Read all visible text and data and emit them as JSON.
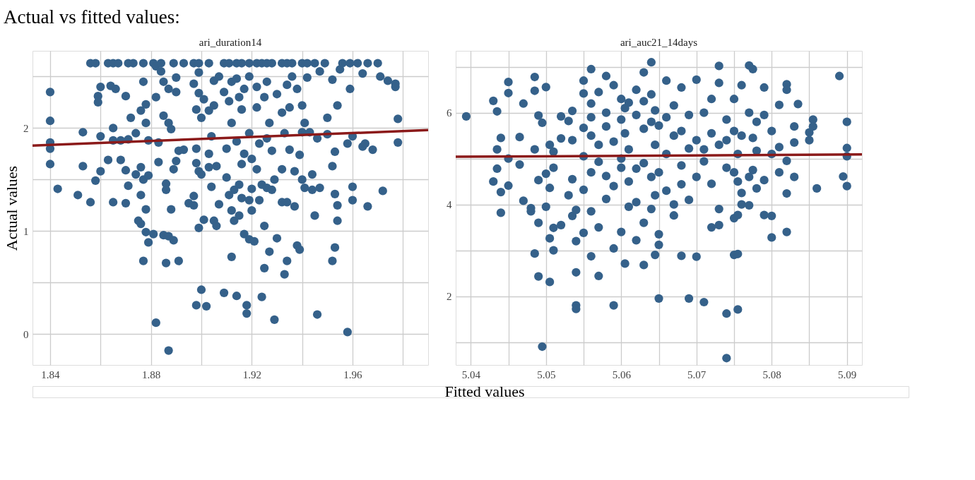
{
  "chart_data": [
    {
      "type": "scatter",
      "title": "ari_duration14",
      "annotations": [
        "Actual vs fitted values:"
      ],
      "xlabel": "Fitted values",
      "ylabel": "Actual values",
      "grid": true,
      "xlim": [
        1.833,
        1.99
      ],
      "ylim": [
        -0.3,
        2.75
      ],
      "xticks": [
        1.84,
        {
          "value": 1.86,
          "label": null
        },
        1.88,
        {
          "value": 1.9,
          "label": null
        },
        1.92,
        {
          "value": 1.94,
          "label": null
        },
        1.96,
        {
          "value": 1.98,
          "label": null
        }
      ],
      "yticks": [
        0,
        {
          "value": 0.5,
          "label": null
        },
        1,
        {
          "value": 1.5,
          "label": null
        },
        2,
        {
          "value": 2.5,
          "label": null
        }
      ],
      "series": [
        {
          "color": "#35618a",
          "marker": "circle",
          "x": [
            1.84,
            1.84,
            1.84,
            1.84,
            1.84,
            1.843,
            1.851,
            1.853,
            1.853,
            1.856,
            1.856,
            1.858,
            1.858,
            1.859,
            1.859,
            1.86,
            1.86,
            1.86,
            1.863,
            1.863,
            1.864,
            1.865,
            1.865,
            1.865,
            1.865,
            1.866,
            1.867,
            1.868,
            1.868,
            1.87,
            1.87,
            1.87,
            1.871,
            1.871,
            1.871,
            1.872,
            1.873,
            1.874,
            1.874,
            1.875,
            1.876,
            1.876,
            1.876,
            1.876,
            1.877,
            1.877,
            1.877,
            1.877,
            1.878,
            1.878,
            1.878,
            1.878,
            1.879,
            1.879,
            1.879,
            1.881,
            1.881,
            1.882,
            1.882,
            1.882,
            1.883,
            1.883,
            1.884,
            1.884,
            1.885,
            1.885,
            1.885,
            1.886,
            1.886,
            1.886,
            1.887,
            1.887,
            1.887,
            1.887,
            1.888,
            1.888,
            1.889,
            1.889,
            1.889,
            1.89,
            1.89,
            1.89,
            1.891,
            1.891,
            1.893,
            1.893,
            1.895,
            1.897,
            1.897,
            1.897,
            1.897,
            1.898,
            1.898,
            1.898,
            1.898,
            1.899,
            1.899,
            1.899,
            1.899,
            1.899,
            1.9,
            1.9,
            1.9,
            1.901,
            1.901,
            1.902,
            1.903,
            1.903,
            1.903,
            1.903,
            1.904,
            1.904,
            1.905,
            1.905,
            1.905,
            1.906,
            1.906,
            1.907,
            1.907,
            1.909,
            1.909,
            1.909,
            1.91,
            1.91,
            1.911,
            1.911,
            1.911,
            1.912,
            1.912,
            1.912,
            1.912,
            1.913,
            1.913,
            1.914,
            1.914,
            1.914,
            1.914,
            1.915,
            1.915,
            1.915,
            1.916,
            1.916,
            1.916,
            1.916,
            1.917,
            1.917,
            1.917,
            1.918,
            1.918,
            1.919,
            1.919,
            1.919,
            1.919,
            1.919,
            1.92,
            1.92,
            1.92,
            1.921,
            1.922,
            1.922,
            1.922,
            1.922,
            1.923,
            1.923,
            1.924,
            1.924,
            1.924,
            1.925,
            1.925,
            1.925,
            1.926,
            1.926,
            1.926,
            1.926,
            1.927,
            1.927,
            1.928,
            1.928,
            1.928,
            1.929,
            1.929,
            1.93,
            1.93,
            1.932,
            1.932,
            1.932,
            1.932,
            1.933,
            1.933,
            1.934,
            1.934,
            1.934,
            1.934,
            1.935,
            1.935,
            1.936,
            1.936,
            1.937,
            1.937,
            1.938,
            1.938,
            1.939,
            1.939,
            1.94,
            1.94,
            1.94,
            1.94,
            1.941,
            1.941,
            1.942,
            1.942,
            1.943,
            1.944,
            1.944,
            1.945,
            1.945,
            1.946,
            1.946,
            1.947,
            1.947,
            1.949,
            1.95,
            1.95,
            1.952,
            1.952,
            1.952,
            1.953,
            1.953,
            1.953,
            1.954,
            1.954,
            1.954,
            1.955,
            1.956,
            1.958,
            1.958,
            1.959,
            1.959,
            1.96,
            1.96,
            1.96,
            1.962,
            1.964,
            1.964,
            1.965,
            1.966,
            1.966,
            1.968,
            1.97,
            1.971,
            1.972,
            1.974,
            1.977,
            1.977,
            1.978,
            1.978
          ],
          "values": [
            2.35,
            2.07,
            1.86,
            1.8,
            1.65,
            1.41,
            1.35,
            1.96,
            1.63,
            2.63,
            1.28,
            2.63,
            1.49,
            2.31,
            2.25,
            2.4,
            1.92,
            1.58,
            2.63,
            1.69,
            2.41,
            2.63,
            2.0,
            1.88,
            1.28,
            2.38,
            2.63,
            1.88,
            1.69,
            2.31,
            1.59,
            1.27,
            2.63,
            1.89,
            1.44,
            2.1,
            2.63,
            1.95,
            1.55,
            1.1,
            2.17,
            1.62,
            1.35,
            1.07,
            2.63,
            2.45,
            1.5,
            0.71,
            2.23,
            2.05,
            1.21,
            0.99,
            1.88,
            1.54,
            0.89,
            2.63,
            0.97,
            2.6,
            2.3,
            0.11,
            1.86,
            1.67,
            2.63,
            2.55,
            2.45,
            2.12,
            0.96,
            1.46,
            1.4,
            0.69,
            2.38,
            2.05,
            0.95,
            -0.16,
            1.99,
            1.21,
            2.63,
            1.6,
            0.91,
            2.49,
            2.35,
            1.68,
            1.78,
            0.71,
            2.63,
            1.79,
            1.27,
            2.63,
            2.43,
            1.34,
            1.25,
            2.18,
            1.8,
            1.66,
            0.28,
            2.63,
            2.54,
            2.34,
            1.58,
            1.03,
            2.1,
            1.55,
            0.43,
            2.28,
            1.11,
            0.27,
            2.63,
            2.17,
            1.75,
            1.62,
            1.92,
            1.43,
            2.46,
            2.22,
            1.1,
            1.63,
            1.05,
            2.5,
            1.26,
            2.63,
            2.35,
            0.4,
            1.8,
            1.52,
            2.63,
            2.26,
            1.35,
            2.45,
            2.05,
            1.2,
            0.75,
            1.4,
            1.1,
            2.63,
            2.48,
            1.87,
            0.37,
            2.3,
            1.45,
            1.15,
            2.63,
            2.18,
            1.65,
            1.32,
            2.38,
            1.75,
            0.97,
            0.28,
            0.2,
            2.63,
            2.5,
            1.95,
            1.3,
            0.92,
            1.7,
            1.41,
            1.2,
            0.9,
            2.63,
            2.4,
            2.2,
            1.6,
            1.85,
            1.3,
            2.63,
            1.45,
            0.36,
            2.3,
            1.05,
            0.64,
            2.63,
            2.45,
            1.9,
            1.42,
            2.05,
            0.8,
            2.63,
            1.78,
            1.4,
            1.5,
            0.14,
            2.33,
            0.93,
            2.63,
            2.15,
            1.6,
            1.28,
            1.95,
            0.58,
            2.63,
            2.42,
            1.28,
            0.71,
            2.2,
            1.79,
            2.63,
            2.5,
            1.58,
            1.24,
            2.38,
            0.86,
            1.74,
            0.82,
            2.63,
            2.22,
            1.96,
            1.5,
            2.05,
            1.42,
            2.63,
            2.49,
            1.96,
            1.55,
            1.4,
            2.63,
            1.15,
            1.9,
            0.19,
            2.55,
            1.42,
            2.63,
            2.1,
            1.94,
            2.47,
            1.63,
            0.71,
            1.77,
            1.36,
            0.84,
            2.22,
            1.25,
            1.1,
            2.57,
            2.63,
            1.85,
            0.02,
            2.63,
            2.38,
            1.92,
            1.43,
            1.3,
            2.63,
            2.53,
            1.82,
            1.85,
            2.63,
            1.24,
            1.79,
            2.63,
            2.5,
            1.39,
            2.46,
            2.43,
            2.4,
            2.09,
            1.86
          ]
        },
        {
          "type": "line",
          "color": "#8b1a1a",
          "x": [
            1.833,
            1.99
          ],
          "values": [
            1.83,
            1.98
          ]
        }
      ]
    },
    {
      "type": "scatter",
      "title": "ari_auc21_14days",
      "grid": true,
      "xlim": [
        5.038,
        5.092
      ],
      "ylim": [
        0.5,
        7.35
      ],
      "xticks": [
        5.04,
        {
          "value": 5.045,
          "label": null
        },
        5.05,
        {
          "value": 5.055,
          "label": null
        },
        5.06,
        {
          "value": 5.065,
          "label": null
        },
        5.07,
        {
          "value": 5.075,
          "label": null
        },
        5.08,
        {
          "value": 5.085,
          "label": null
        },
        5.09
      ],
      "yticks": [
        {
          "value": 1,
          "label": null
        },
        2,
        {
          "value": 3,
          "label": null
        },
        4,
        {
          "value": 5,
          "label": null
        },
        6,
        {
          "value": 7,
          "label": null
        }
      ],
      "series": [
        {
          "color": "#35618a",
          "marker": "circle",
          "x": [
            5.0394,
            5.043,
            5.043,
            5.0435,
            5.0435,
            5.0435,
            5.044,
            5.044,
            5.044,
            5.045,
            5.045,
            5.045,
            5.045,
            5.0465,
            5.0465,
            5.047,
            5.047,
            5.048,
            5.048,
            5.0485,
            5.0485,
            5.0485,
            5.0485,
            5.049,
            5.049,
            5.049,
            5.049,
            5.0495,
            5.0495,
            5.05,
            5.05,
            5.05,
            5.0505,
            5.0505,
            5.0505,
            5.0505,
            5.051,
            5.051,
            5.051,
            5.051,
            5.052,
            5.052,
            5.052,
            5.053,
            5.053,
            5.0535,
            5.0535,
            5.0535,
            5.0535,
            5.054,
            5.054,
            5.054,
            5.054,
            5.054,
            5.055,
            5.055,
            5.055,
            5.055,
            5.055,
            5.055,
            5.056,
            5.056,
            5.056,
            5.056,
            5.056,
            5.056,
            5.056,
            5.057,
            5.057,
            5.057,
            5.057,
            5.057,
            5.058,
            5.058,
            5.058,
            5.058,
            5.058,
            5.059,
            5.059,
            5.059,
            5.059,
            5.059,
            5.06,
            5.06,
            5.06,
            5.06,
            5.06,
            5.0605,
            5.0605,
            5.0605,
            5.061,
            5.061,
            5.061,
            5.061,
            5.062,
            5.062,
            5.062,
            5.062,
            5.062,
            5.063,
            5.063,
            5.063,
            5.063,
            5.063,
            5.063,
            5.064,
            5.064,
            5.064,
            5.064,
            5.064,
            5.0645,
            5.0645,
            5.0645,
            5.0645,
            5.065,
            5.065,
            5.065,
            5.065,
            5.065,
            5.066,
            5.066,
            5.066,
            5.066,
            5.067,
            5.067,
            5.067,
            5.067,
            5.068,
            5.068,
            5.068,
            5.068,
            5.068,
            5.069,
            5.069,
            5.069,
            5.069,
            5.07,
            5.07,
            5.07,
            5.07,
            5.071,
            5.071,
            5.071,
            5.071,
            5.072,
            5.072,
            5.072,
            5.072,
            5.073,
            5.073,
            5.073,
            5.073,
            5.073,
            5.074,
            5.074,
            5.074,
            5.074,
            5.074,
            5.075,
            5.075,
            5.075,
            5.075,
            5.075,
            5.0755,
            5.0755,
            5.0755,
            5.0755,
            5.0755,
            5.076,
            5.076,
            5.076,
            5.076,
            5.077,
            5.077,
            5.077,
            5.077,
            5.0775,
            5.0775,
            5.0775,
            5.078,
            5.078,
            5.078,
            5.079,
            5.079,
            5.079,
            5.079,
            5.08,
            5.08,
            5.08,
            5.08,
            5.081,
            5.081,
            5.081,
            5.082,
            5.082,
            5.082,
            5.082,
            5.082,
            5.083,
            5.083,
            5.083,
            5.0835,
            5.085,
            5.085,
            5.0855,
            5.0855,
            5.086,
            5.089,
            5.0895,
            5.09,
            5.09,
            5.09,
            5.09
          ],
          "values": [
            5.92,
            6.26,
            4.5,
            6.03,
            5.2,
            4.78,
            5.45,
            4.27,
            3.82,
            6.67,
            6.43,
            5.0,
            4.41,
            5.47,
            4.87,
            6.2,
            4.08,
            3.92,
            3.85,
            6.78,
            6.48,
            5.2,
            2.93,
            5.94,
            4.53,
            3.6,
            2.43,
            5.78,
            0.9,
            6.56,
            4.67,
            3.95,
            5.3,
            4.36,
            2.31,
            3.26,
            5.15,
            4.8,
            3.49,
            3.0,
            5.92,
            5.44,
            3.55,
            5.82,
            4.2,
            6.04,
            5.4,
            4.55,
            3.75,
            3.88,
            3.2,
            2.52,
            1.8,
            1.72,
            6.7,
            6.42,
            5.67,
            5.05,
            4.32,
            3.38,
            6.95,
            6.2,
            5.9,
            5.5,
            4.7,
            3.85,
            2.87,
            6.45,
            5.3,
            4.93,
            3.5,
            2.44,
            6.8,
            6.0,
            5.7,
            4.62,
            4.12,
            6.6,
            5.37,
            4.4,
            3.04,
            1.8,
            6.3,
            5.85,
            5.0,
            4.8,
            3.4,
            6.1,
            5.55,
            2.71,
            6.22,
            5.2,
            4.5,
            3.95,
            6.5,
            5.95,
            4.78,
            4.05,
            3.22,
            6.88,
            6.25,
            5.65,
            4.9,
            3.6,
            2.68,
            7.1,
            6.4,
            5.8,
            4.6,
            3.9,
            6.05,
            5.3,
            4.2,
            2.9,
            5.72,
            4.7,
            3.35,
            3.12,
            1.95,
            6.7,
            5.9,
            5.1,
            4.3,
            6.16,
            5.5,
            4.0,
            3.76,
            6.55,
            5.6,
            4.85,
            4.44,
            2.88,
            5.95,
            5.22,
            4.1,
            1.95,
            6.72,
            5.4,
            4.6,
            2.86,
            6.0,
            5.2,
            4.94,
            1.87,
            6.3,
            5.55,
            4.45,
            3.5,
            7.02,
            6.65,
            5.3,
            3.9,
            3.55,
            5.85,
            5.4,
            4.8,
            1.62,
            0.65,
            6.3,
            5.6,
            4.7,
            3.7,
            2.9,
            5.1,
            4.5,
            3.77,
            2.92,
            1.71,
            6.6,
            5.5,
            4.25,
            4.0,
            7.03,
            6.0,
            4.6,
            3.98,
            6.95,
            5.45,
            4.75,
            5.8,
            5.17,
            4.35,
            6.55,
            5.95,
            4.53,
            3.77,
            5.6,
            5.1,
            3.75,
            3.28,
            6.17,
            5.25,
            4.7,
            6.62,
            6.5,
            4.95,
            4.24,
            3.4,
            5.7,
            5.35,
            4.6,
            6.19,
            5.4,
            5.57,
            5.85,
            5.7,
            4.35,
            6.8,
            4.61,
            5.8,
            5.23,
            5.05,
            4.4
          ]
        },
        {
          "type": "line",
          "color": "#8b1a1a",
          "x": [
            5.038,
            5.092
          ],
          "values": [
            5.04,
            5.09
          ]
        }
      ]
    }
  ]
}
